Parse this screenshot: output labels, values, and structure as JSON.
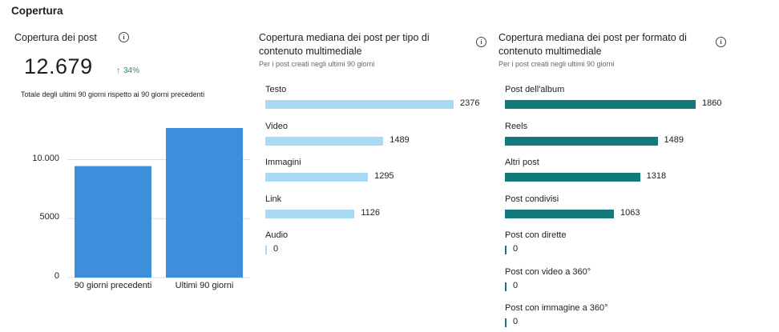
{
  "section_title": "Copertura",
  "panel1": {
    "title": "Copertura dei post",
    "total": "12.679",
    "delta_arrow": "↑",
    "delta": "34%",
    "note": "Totale degli ultimi 90 giorni rispetto ai 90 giorni precedenti",
    "chart_data": {
      "type": "bar",
      "categories": [
        "90 giorni precedenti",
        "Ultimi 90 giorni"
      ],
      "values": [
        9450,
        12679
      ],
      "ylim": [
        0,
        12679
      ],
      "yticks": [
        0,
        5000,
        10000
      ],
      "ytick_labels": [
        "0",
        "5000",
        "10.000"
      ],
      "grid": true,
      "color": "#3d8fdb"
    }
  },
  "panel2": {
    "title": "Copertura mediana dei post per tipo di contenuto multimediale",
    "subtitle": "Per i post creati negli ultimi 90 giorni",
    "color": "#a8daf5",
    "chart_data": {
      "type": "bar",
      "orientation": "horizontal",
      "categories": [
        "Testo",
        "Video",
        "Immagini",
        "Link",
        "Audio"
      ],
      "values": [
        2376,
        1489,
        1295,
        1126,
        0
      ]
    }
  },
  "panel3": {
    "title": "Copertura mediana dei post per formato di contenuto multimediale",
    "subtitle": "Per i post creati negli ultimi 90 giorni",
    "color": "#127a7a",
    "chart_data": {
      "type": "bar",
      "orientation": "horizontal",
      "categories": [
        "Post dell'album",
        "Reels",
        "Altri post",
        "Post condivisi",
        "Post con dirette",
        "Post con video a 360°",
        "Post con immagine a 360°"
      ],
      "values": [
        1860,
        1489,
        1318,
        1063,
        0,
        0,
        0
      ]
    }
  },
  "info_icon_glyph": "i"
}
